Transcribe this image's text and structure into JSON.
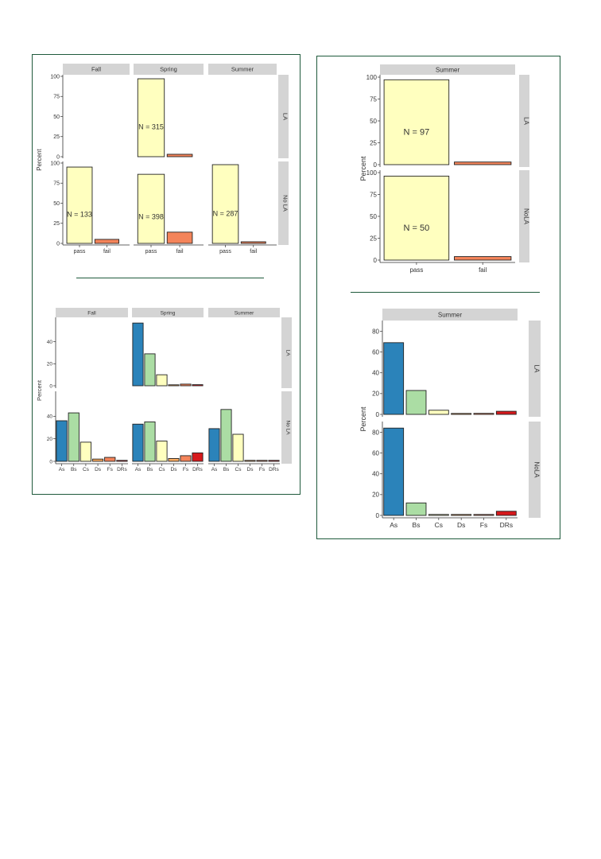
{
  "chart_data": [
    {
      "type": "bar",
      "id": "left-pass-fail",
      "ylabel": "Percent",
      "ylim": [
        0,
        100
      ],
      "yticks": [
        0,
        25,
        50,
        75,
        100
      ],
      "columns": [
        "Fall",
        "Spring",
        "Summer"
      ],
      "rows": [
        "LA",
        "No LA"
      ],
      "categories": [
        "pass",
        "fail"
      ],
      "colors": {
        "pass": "#ffffbf",
        "fail": "#f4845a"
      },
      "cells": [
        {
          "col": "Fall",
          "row": "LA",
          "values": [],
          "n_label": ""
        },
        {
          "col": "Spring",
          "row": "LA",
          "values": [
            97,
            3
          ],
          "n_label": "N = 315"
        },
        {
          "col": "Summer",
          "row": "LA",
          "values": [],
          "n_label": ""
        },
        {
          "col": "Fall",
          "row": "No LA",
          "values": [
            95,
            5
          ],
          "n_label": "N = 133"
        },
        {
          "col": "Spring",
          "row": "No LA",
          "values": [
            86,
            14
          ],
          "n_label": "N = 398"
        },
        {
          "col": "Summer",
          "row": "No LA",
          "values": [
            98,
            2
          ],
          "n_label": "N = 287"
        }
      ]
    },
    {
      "type": "bar",
      "id": "left-grades",
      "ylabel": "Percent",
      "ylim": [
        0,
        60
      ],
      "yticks": [
        0,
        20,
        40
      ],
      "columns": [
        "Fall",
        "Spring",
        "Summer"
      ],
      "rows": [
        "LA",
        "No LA"
      ],
      "categories": [
        "As",
        "Bs",
        "Cs",
        "Ds",
        "Fs",
        "DRs"
      ],
      "colors": [
        "#2b83ba",
        "#abdda4",
        "#ffffbf",
        "#fdae61",
        "#f4845a",
        "#d7191c"
      ],
      "cells": [
        {
          "col": "Fall",
          "row": "LA",
          "values": []
        },
        {
          "col": "Spring",
          "row": "LA",
          "values": [
            57,
            29,
            10,
            0.4,
            1.5,
            1
          ]
        },
        {
          "col": "Summer",
          "row": "LA",
          "values": []
        },
        {
          "col": "Fall",
          "row": "No LA",
          "values": [
            36,
            43,
            17,
            2,
            3.5,
            0
          ]
        },
        {
          "col": "Spring",
          "row": "No LA",
          "values": [
            33,
            35,
            18,
            2.5,
            5,
            7.5
          ]
        },
        {
          "col": "Summer",
          "row": "No LA",
          "values": [
            29,
            46,
            24,
            0.5,
            0.5,
            0.5
          ]
        }
      ]
    },
    {
      "type": "bar",
      "id": "right-pass-fail",
      "ylabel": "Percent",
      "ylim": [
        0,
        100
      ],
      "yticks": [
        0,
        25,
        50,
        75,
        100
      ],
      "columns": [
        "Summer"
      ],
      "rows": [
        "LA",
        "NoLA"
      ],
      "categories": [
        "pass",
        "fail"
      ],
      "colors": {
        "pass": "#ffffbf",
        "fail": "#f4845a"
      },
      "cells": [
        {
          "col": "Summer",
          "row": "LA",
          "values": [
            97,
            3
          ],
          "n_label": "N = 97"
        },
        {
          "col": "Summer",
          "row": "NoLA",
          "values": [
            96,
            4
          ],
          "n_label": "N = 50"
        }
      ]
    },
    {
      "type": "bar",
      "id": "right-grades",
      "ylabel": "Percent",
      "ylim": [
        0,
        88
      ],
      "yticks": [
        0,
        20,
        40,
        60,
        80
      ],
      "columns": [
        "Summer"
      ],
      "rows": [
        "LA",
        "NoLA"
      ],
      "categories": [
        "As",
        "Bs",
        "Cs",
        "Ds",
        "Fs",
        "DRs"
      ],
      "colors": [
        "#2b83ba",
        "#abdda4",
        "#ffffbf",
        "#fdae61",
        "#f4845a",
        "#d7191c"
      ],
      "cells": [
        {
          "col": "Summer",
          "row": "LA",
          "values": [
            69,
            23,
            4,
            0.5,
            1,
            3
          ]
        },
        {
          "col": "Summer",
          "row": "NoLA",
          "values": [
            84,
            12,
            0.3,
            0.3,
            0.3,
            4
          ]
        }
      ]
    }
  ]
}
